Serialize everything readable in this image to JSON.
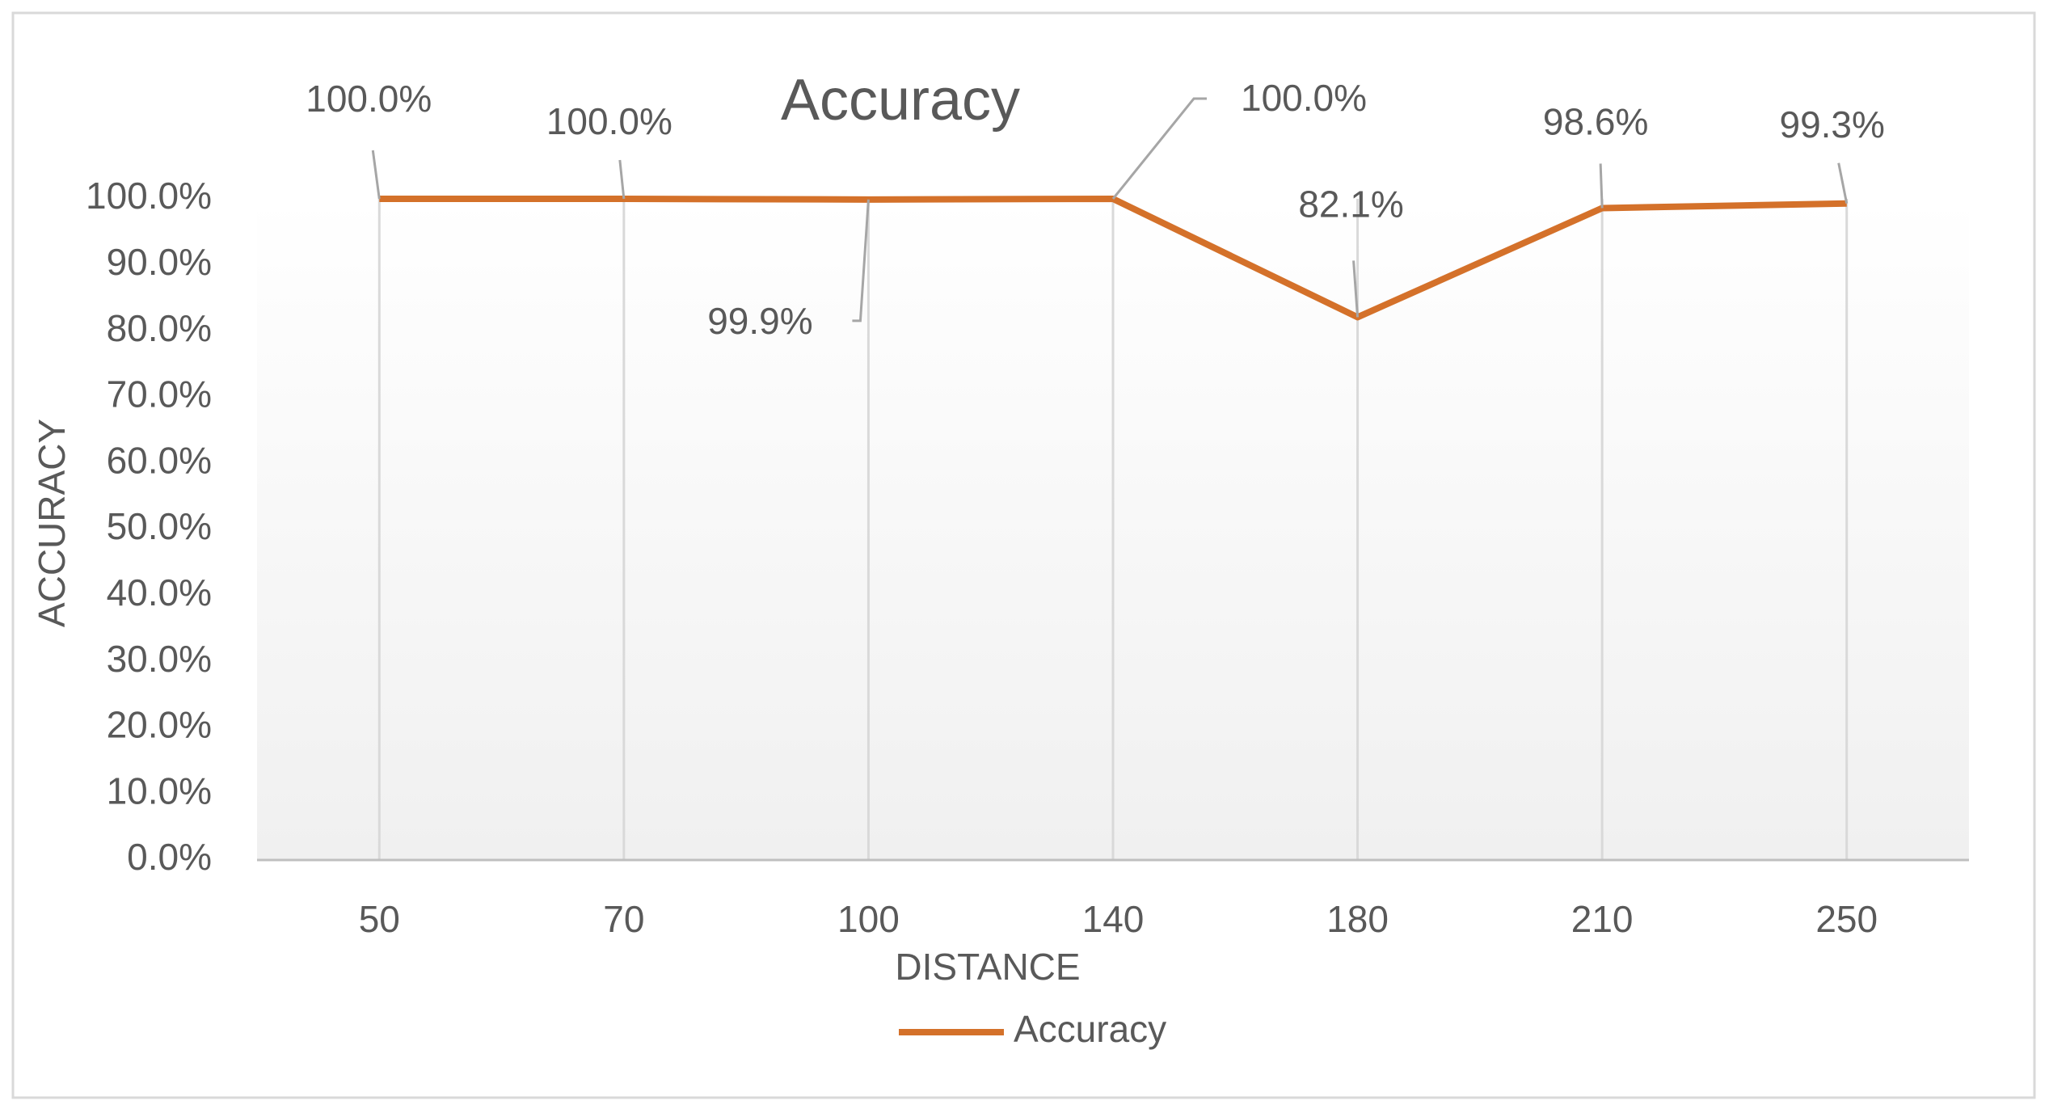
{
  "chart_data": {
    "type": "line",
    "title": "Accuracy",
    "x_label": "DISTANCE",
    "y_label": "ACCURACY",
    "categories": [
      "50",
      "70",
      "100",
      "140",
      "180",
      "210",
      "250"
    ],
    "series": [
      {
        "name": "Accuracy",
        "color": "#d4712a",
        "values": [
          100,
          100,
          99.9,
          100,
          82.1,
          98.6,
          99.3
        ],
        "value_labels": [
          "100.0%",
          "100.0%",
          "99.9%",
          "100.0%",
          "82.1%",
          "98.6%",
          "99.3%"
        ]
      }
    ],
    "ylim": [
      0,
      100
    ],
    "yticks": [
      {
        "value": 0,
        "label": "0.0%"
      },
      {
        "value": 10,
        "label": "10.0%"
      },
      {
        "value": 20,
        "label": "20.0%"
      },
      {
        "value": 30,
        "label": "30.0%"
      },
      {
        "value": 40,
        "label": "40.0%"
      },
      {
        "value": 50,
        "label": "50.0%"
      },
      {
        "value": 60,
        "label": "60.0%"
      },
      {
        "value": 70,
        "label": "70.0%"
      },
      {
        "value": 80,
        "label": "80.0%"
      },
      {
        "value": 90,
        "label": "90.0%"
      },
      {
        "value": 100,
        "label": "100.0%"
      }
    ],
    "grid": true,
    "legend": "bottom"
  }
}
